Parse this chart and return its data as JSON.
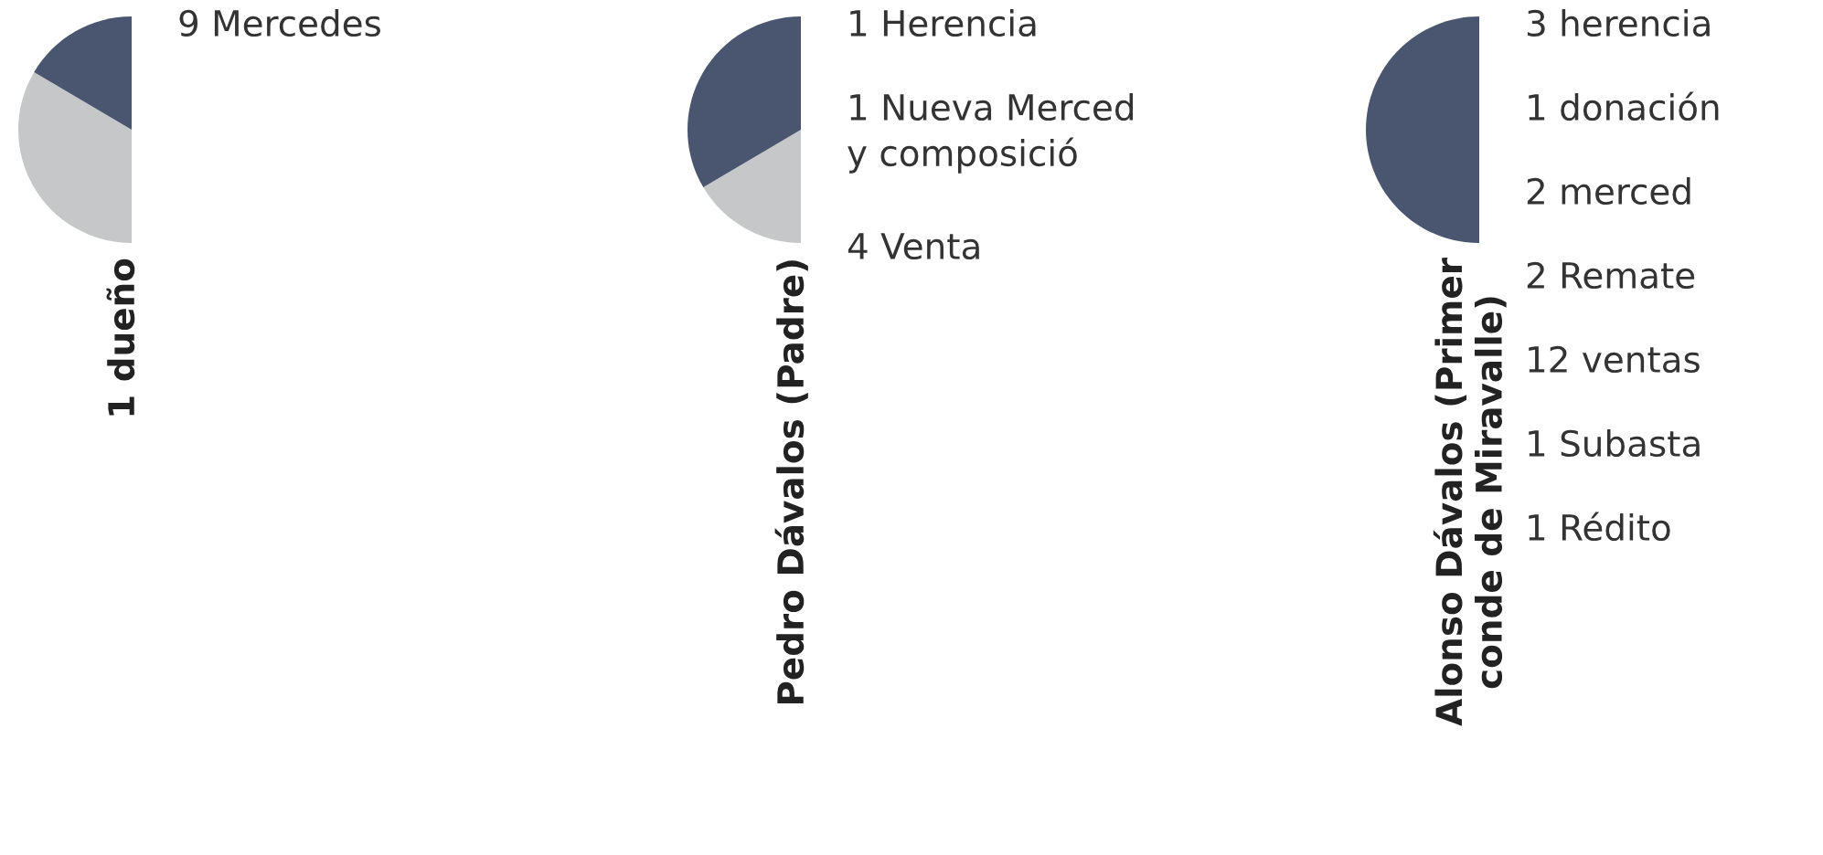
{
  "chart_data": [
    {
      "type": "pie",
      "categories": [
        null,
        null
      ],
      "values": [
        33,
        67
      ],
      "colors": [
        "#4a5670",
        "#c6c7c9"
      ],
      "xlabel": "1 dueño",
      "annotations": [
        "9 Mercedes"
      ]
    },
    {
      "type": "pie",
      "categories": [
        null,
        null
      ],
      "values": [
        67,
        33
      ],
      "colors": [
        "#4a5670",
        "#c6c7c9"
      ],
      "xlabel": "Pedro Dávalos (Padre)",
      "annotations": [
        "1 Herencia",
        "1 Nueva Merced\ny composició",
        "4 Venta"
      ]
    },
    {
      "type": "pie",
      "categories": [
        null,
        null
      ],
      "values": [
        100,
        0
      ],
      "colors": [
        "#4a5670",
        "#c6c7c9"
      ],
      "xlabel": "Alonso Dávalos (Primer\nconde de Miravalle)",
      "annotations": [
        "3 herencia",
        "1 donación",
        "2 merced",
        "2 Remate",
        "12 ventas",
        "1 Subasta",
        "1 Rédito"
      ]
    }
  ]
}
